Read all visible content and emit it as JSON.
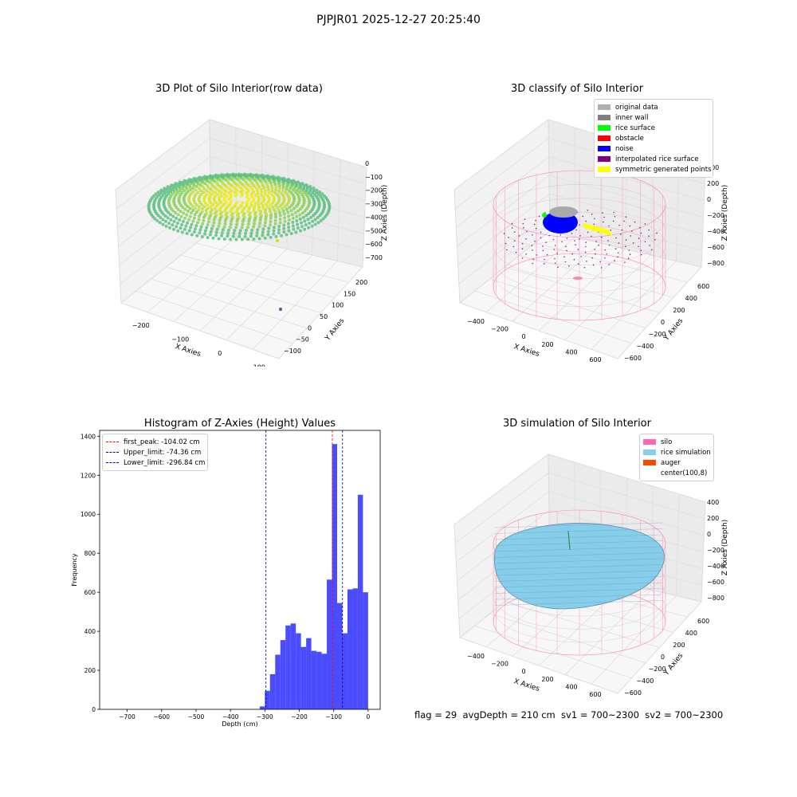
{
  "suptitle": "PJPJR01 2025-12-27 20:25:40",
  "footer": "flag = 29  avgDepth = 210 cm  sv1 = 700~2300  sv2 = 700~2300",
  "panels": {
    "raw": {
      "title": "3D Plot of Silo Interior(row data)",
      "xlabel": "X Axies",
      "ylabel": "Y Axies",
      "zlabel": "Z Axies (Depth)",
      "xticks": [
        "−200",
        "−100",
        "0",
        "100"
      ],
      "yticks": [
        "−100",
        "−50",
        "0",
        "50",
        "100",
        "150",
        "200"
      ],
      "zticks": [
        "0",
        "−100",
        "−200",
        "−300",
        "−400",
        "−500",
        "−600",
        "−700"
      ]
    },
    "classify": {
      "title": "3D classify of Silo Interior",
      "xlabel": "X Axies",
      "ylabel": "Y Axies",
      "zlabel": "Z Axies (Depth)",
      "xticks": [
        "−400",
        "−200",
        "0",
        "200",
        "400",
        "600"
      ],
      "yticks": [
        "−600",
        "−400",
        "−200",
        "0",
        "200",
        "400",
        "600"
      ],
      "zticks": [
        "400",
        "200",
        "0",
        "−200",
        "−400",
        "−600",
        "−800"
      ],
      "legend": [
        {
          "label": "original data",
          "color": "#b0b0b0"
        },
        {
          "label": "inner wall",
          "color": "#808080"
        },
        {
          "label": "rice surface",
          "color": "#00ff00"
        },
        {
          "label": "obstacle",
          "color": "#ff0000"
        },
        {
          "label": "noise",
          "color": "#0000ff"
        },
        {
          "label": "interpolated rice surface",
          "color": "#800080"
        },
        {
          "label": "symmetric generated points",
          "color": "#ffff00"
        }
      ]
    },
    "simulation": {
      "title": "3D simulation of Silo Interior",
      "xlabel": "X Axies",
      "ylabel": "Y Axies",
      "zlabel": "Z Axies (Depth)",
      "xticks": [
        "−400",
        "−200",
        "0",
        "200",
        "400",
        "600"
      ],
      "yticks": [
        "−600",
        "−400",
        "−200",
        "0",
        "200",
        "400",
        "600"
      ],
      "zticks": [
        "400",
        "200",
        "0",
        "−200",
        "−400",
        "−600",
        "−800"
      ],
      "legend": [
        {
          "label": "silo",
          "color": "#ff69b4"
        },
        {
          "label": "rice simulation",
          "color": "#87ceeb"
        },
        {
          "label": "auger",
          "color": "#ff4500"
        },
        {
          "label": "center(100,8)",
          "color": "#ffffff"
        }
      ]
    }
  },
  "chart_data": {
    "type": "bar",
    "title": "Histogram of Z-Axies (Height) Values",
    "xlabel": "Depth (cm)",
    "ylabel": "Frequency",
    "xlim": [
      -780,
      35
    ],
    "ylim": [
      0,
      1430
    ],
    "xticks": [
      -700,
      -600,
      -500,
      -400,
      -300,
      -200,
      -100,
      0
    ],
    "yticks": [
      0,
      200,
      400,
      600,
      800,
      1000,
      1200,
      1400
    ],
    "bar_color": "#0000ff",
    "bin_width": 15,
    "bins": [
      {
        "x0": -315,
        "v": 15
      },
      {
        "x0": -300,
        "v": 95
      },
      {
        "x0": -285,
        "v": 180
      },
      {
        "x0": -270,
        "v": 280
      },
      {
        "x0": -255,
        "v": 355
      },
      {
        "x0": -240,
        "v": 430
      },
      {
        "x0": -225,
        "v": 440
      },
      {
        "x0": -210,
        "v": 390
      },
      {
        "x0": -195,
        "v": 320
      },
      {
        "x0": -180,
        "v": 365
      },
      {
        "x0": -165,
        "v": 300
      },
      {
        "x0": -150,
        "v": 295
      },
      {
        "x0": -135,
        "v": 285
      },
      {
        "x0": -120,
        "v": 665
      },
      {
        "x0": -105,
        "v": 1360
      },
      {
        "x0": -90,
        "v": 545
      },
      {
        "x0": -75,
        "v": 390
      },
      {
        "x0": -60,
        "v": 615
      },
      {
        "x0": -45,
        "v": 620
      },
      {
        "x0": -30,
        "v": 1100
      },
      {
        "x0": -15,
        "v": 600
      }
    ],
    "lines": [
      {
        "label": "first_peak: -104.02 cm",
        "value": -104.02,
        "color": "#ff0000"
      },
      {
        "label": "Upper_limit: -74.36 cm",
        "value": -74.36,
        "color": "#00008b"
      },
      {
        "label": "Lower_limit: -296.84 cm",
        "value": -296.84,
        "color": "#00008b"
      }
    ]
  }
}
